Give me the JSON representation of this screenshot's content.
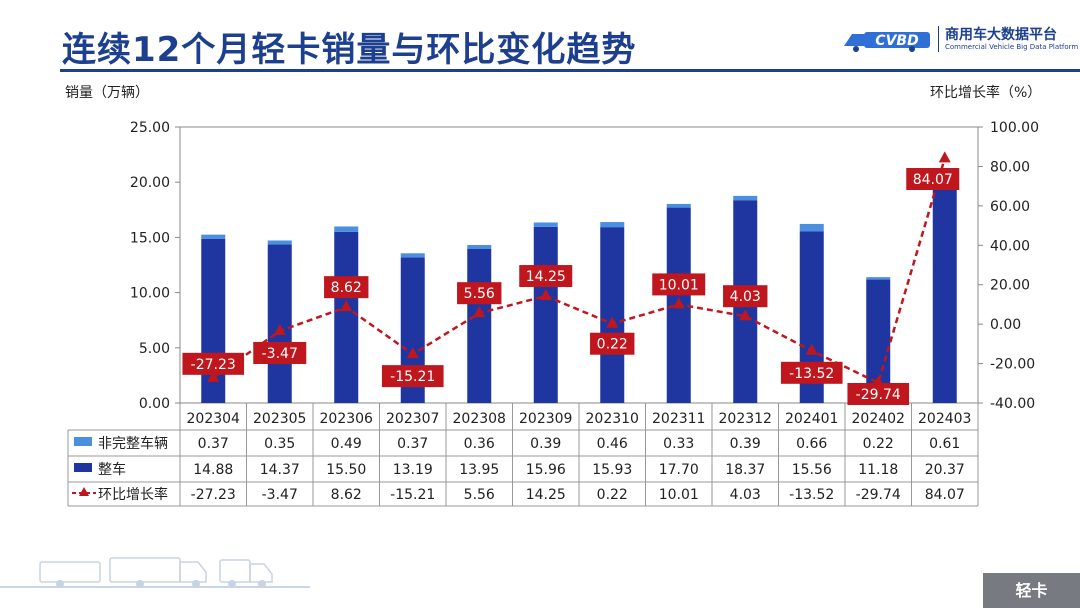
{
  "page": {
    "title": "连续12个月轻卡销量与环比变化趋势",
    "logo_text": "商用车大数据平台",
    "logo_subtext": "Commercial Vehicle Big Data Platform",
    "section_tag": "轻卡"
  },
  "chart_data": {
    "type": "bar",
    "subtype": "stacked-bar-with-line",
    "categories": [
      "202304",
      "202305",
      "202306",
      "202307",
      "202308",
      "202309",
      "202310",
      "202311",
      "202312",
      "202401",
      "202402",
      "202403"
    ],
    "y_left_label": "销量（万辆）",
    "y_right_label": "环比增长率（%）",
    "y_left_lim": [
      0,
      25
    ],
    "y_left_ticks": [
      "0.00",
      "5.00",
      "10.00",
      "15.00",
      "20.00",
      "25.00"
    ],
    "y_right_lim": [
      -40,
      100
    ],
    "y_right_ticks": [
      "-40.00",
      "-20.00",
      "0.00",
      "20.00",
      "40.00",
      "60.00",
      "80.00",
      "100.00"
    ],
    "grid": false,
    "legend_position": "data-table",
    "series": [
      {
        "name": "非完整车辆",
        "kind": "bar",
        "axis": "left",
        "color": "#4a8fe0",
        "values": [
          0.37,
          0.35,
          0.49,
          0.37,
          0.36,
          0.39,
          0.46,
          0.33,
          0.39,
          0.66,
          0.22,
          0.61
        ],
        "labels": [
          "0.37",
          "0.35",
          "0.49",
          "0.37",
          "0.36",
          "0.39",
          "0.46",
          "0.33",
          "0.39",
          "0.66",
          "0.22",
          "0.61"
        ]
      },
      {
        "name": "整车",
        "kind": "bar",
        "axis": "left",
        "color": "#1f36a0",
        "values": [
          14.88,
          14.37,
          15.5,
          13.19,
          13.95,
          15.96,
          15.93,
          17.7,
          18.37,
          15.56,
          11.18,
          20.37
        ],
        "labels": [
          "14.88",
          "14.37",
          "15.50",
          "13.19",
          "13.95",
          "15.96",
          "15.93",
          "17.70",
          "18.37",
          "15.56",
          "11.18",
          "20.37"
        ]
      },
      {
        "name": "环比增长率",
        "kind": "line",
        "axis": "right",
        "color": "#c0161d",
        "values": [
          -27.23,
          -3.47,
          8.62,
          -15.21,
          5.56,
          14.25,
          0.22,
          10.01,
          4.03,
          -13.52,
          -29.74,
          84.07
        ],
        "labels": [
          "-27.23",
          "-3.47",
          "8.62",
          "-15.21",
          "5.56",
          "14.25",
          "0.22",
          "10.01",
          "4.03",
          "-13.52",
          "-29.74",
          "84.07"
        ]
      }
    ]
  }
}
